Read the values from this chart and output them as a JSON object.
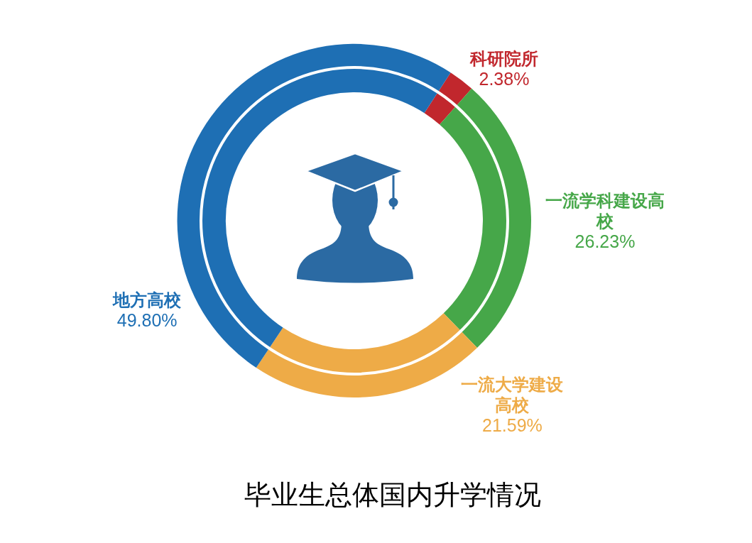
{
  "chart_data": {
    "type": "donut",
    "title": "毕业生总体国内升学情况",
    "categories": [
      "科研院所",
      "一流学科建设高校",
      "一流大学建设高校",
      "地方高校"
    ],
    "values": [
      2.38,
      26.23,
      21.59,
      49.8
    ],
    "colors": [
      "#c1272d",
      "#46a749",
      "#eeab47",
      "#1e6fb4"
    ],
    "value_labels": [
      "2.38%",
      "26.23%",
      "21.59%",
      "49.80%"
    ]
  }
}
